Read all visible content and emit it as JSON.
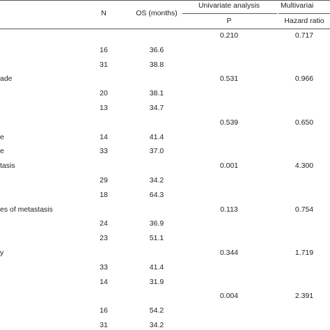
{
  "header": {
    "n": "N",
    "os": "OS (months)",
    "univariate": "Univariate analysis",
    "multivariate": "Multivariai",
    "p": "P",
    "hazard_ratio": "Hazard ratio"
  },
  "rows": [
    {
      "label": "",
      "n": "",
      "os": "",
      "p": "0.210",
      "hr": "0.717"
    },
    {
      "label": "",
      "n": "16",
      "os": "36.6",
      "p": "",
      "hr": ""
    },
    {
      "label": "",
      "n": "31",
      "os": "38.8",
      "p": "",
      "hr": ""
    },
    {
      "label": "ade",
      "n": "",
      "os": "",
      "p": "0.531",
      "hr": "0.966"
    },
    {
      "label": "",
      "n": "20",
      "os": "38.1",
      "p": "",
      "hr": ""
    },
    {
      "label": "",
      "n": "13",
      "os": "34.7",
      "p": "",
      "hr": ""
    },
    {
      "label": "",
      "n": "",
      "os": "",
      "p": "0.539",
      "hr": "0.650"
    },
    {
      "label": "e",
      "n": "14",
      "os": "41.4",
      "p": "",
      "hr": ""
    },
    {
      "label": "e",
      "n": "33",
      "os": "37.0",
      "p": "",
      "hr": ""
    },
    {
      "label": "tasis",
      "n": "",
      "os": "",
      "p": "0.001",
      "hr": "4.300"
    },
    {
      "label": "",
      "n": "29",
      "os": "34.2",
      "p": "",
      "hr": ""
    },
    {
      "label": "",
      "n": "18",
      "os": "64.3",
      "p": "",
      "hr": ""
    },
    {
      "label": "es of metastasis",
      "n": "",
      "os": "",
      "p": "0.113",
      "hr": "0.754"
    },
    {
      "label": "",
      "n": "24",
      "os": "36.9",
      "p": "",
      "hr": ""
    },
    {
      "label": "",
      "n": "23",
      "os": "51.1",
      "p": "",
      "hr": ""
    },
    {
      "label": "y",
      "n": "",
      "os": "",
      "p": "0.344",
      "hr": "1.719"
    },
    {
      "label": "",
      "n": "33",
      "os": "41.4",
      "p": "",
      "hr": ""
    },
    {
      "label": "",
      "n": "14",
      "os": "31.9",
      "p": "",
      "hr": ""
    },
    {
      "label": "",
      "n": "",
      "os": "",
      "p": "0.004",
      "hr": "2.391"
    },
    {
      "label": "",
      "n": "16",
      "os": "54.2",
      "p": "",
      "hr": ""
    },
    {
      "label": "",
      "n": "31",
      "os": "34.2",
      "p": "",
      "hr": ""
    }
  ]
}
